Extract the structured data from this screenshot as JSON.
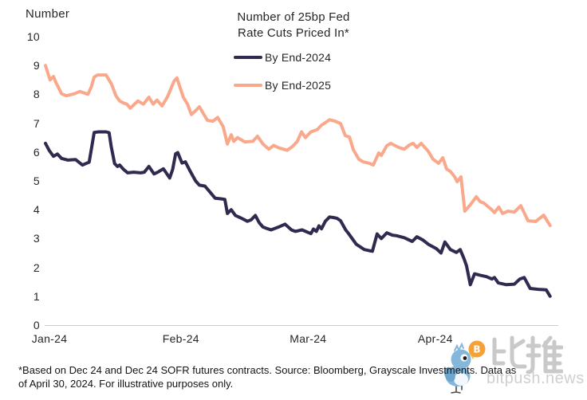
{
  "header": {
    "ylabel": "Number",
    "title_line1": "Number of 25bp Fed",
    "title_line2": "Rate Cuts Priced In*"
  },
  "legend": [
    {
      "label": "By End-2024",
      "color": "#2f2a4f"
    },
    {
      "label": "By End-2025",
      "color": "#faa88c"
    }
  ],
  "footnote": {
    "line1": "*Based on Dec 24 and Dec 24 SOFR futures contracts. Source: Bloomberg, Grayscale Investments. Data as",
    "line2": "of April 30, 2024. For illustrative purposes only."
  },
  "watermark": {
    "cn_text": "比推",
    "domain": "bitpush.news",
    "bird_color": "#85b7dc",
    "wing_color": "#6ea6cf",
    "beak_color": "#f0c24a",
    "coin_color": "#f5a135",
    "coin_symbol": "B",
    "gray": "#c9c9c9"
  },
  "chart_data": {
    "type": "line",
    "title": "Number of 25bp Fed Rate Cuts Priced In*",
    "ylabel": "Number",
    "ylim": [
      0,
      10
    ],
    "yticks": [
      0,
      1,
      2,
      3,
      4,
      5,
      6,
      7,
      8,
      9,
      10
    ],
    "x_unit": "days since 2024-01-01",
    "xlim": [
      0,
      120
    ],
    "xticks": [
      {
        "day": 0,
        "label": "Jan-24"
      },
      {
        "day": 31,
        "label": "Feb-24"
      },
      {
        "day": 61,
        "label": "Mar-24"
      },
      {
        "day": 91,
        "label": "Apr-24"
      }
    ],
    "grid": false,
    "legend_position": "top-center",
    "axis_color": "#cccccc",
    "series": [
      {
        "name": "By End-2024",
        "color": "#2f2a4f",
        "points": [
          [
            0,
            6.3
          ],
          [
            0.9,
            6.05
          ],
          [
            1.9,
            5.85
          ],
          [
            2.8,
            5.93
          ],
          [
            3.8,
            5.78
          ],
          [
            5.3,
            5.72
          ],
          [
            7.1,
            5.74
          ],
          [
            8.7,
            5.55
          ],
          [
            9.5,
            5.6
          ],
          [
            10.3,
            5.65
          ],
          [
            11.5,
            6.68
          ],
          [
            12.5,
            6.7
          ],
          [
            14.3,
            6.7
          ],
          [
            15,
            6.67
          ],
          [
            15.5,
            6.2
          ],
          [
            16.3,
            5.6
          ],
          [
            17,
            5.5
          ],
          [
            17.5,
            5.55
          ],
          [
            18.4,
            5.4
          ],
          [
            19.4,
            5.28
          ],
          [
            20.8,
            5.3
          ],
          [
            22.5,
            5.28
          ],
          [
            23.3,
            5.3
          ],
          [
            24.4,
            5.5
          ],
          [
            25.6,
            5.24
          ],
          [
            26.5,
            5.3
          ],
          [
            27.8,
            5.42
          ],
          [
            29.3,
            5.1
          ],
          [
            30,
            5.4
          ],
          [
            30.7,
            5.94
          ],
          [
            31.2,
            5.98
          ],
          [
            32.2,
            5.62
          ],
          [
            33,
            5.66
          ],
          [
            34,
            5.37
          ],
          [
            35.4,
            5.0
          ],
          [
            36.3,
            4.85
          ],
          [
            37.6,
            4.82
          ],
          [
            38.7,
            4.63
          ],
          [
            40,
            4.4
          ],
          [
            41.2,
            4.38
          ],
          [
            42.3,
            4.36
          ],
          [
            42.9,
            3.87
          ],
          [
            43.8,
            4.0
          ],
          [
            44.8,
            3.8
          ],
          [
            46.3,
            3.7
          ],
          [
            47.6,
            3.6
          ],
          [
            48.5,
            3.65
          ],
          [
            49.5,
            3.8
          ],
          [
            50.4,
            3.55
          ],
          [
            51.3,
            3.4
          ],
          [
            52.2,
            3.35
          ],
          [
            53.2,
            3.3
          ],
          [
            55,
            3.4
          ],
          [
            56.5,
            3.5
          ],
          [
            58,
            3.3
          ],
          [
            58.9,
            3.25
          ],
          [
            60.5,
            3.3
          ],
          [
            62.6,
            3.17
          ],
          [
            63.2,
            3.33
          ],
          [
            63.9,
            3.25
          ],
          [
            64.5,
            3.44
          ],
          [
            65.1,
            3.34
          ],
          [
            66,
            3.6
          ],
          [
            67,
            3.75
          ],
          [
            67.9,
            3.73
          ],
          [
            68.8,
            3.7
          ],
          [
            69.6,
            3.62
          ],
          [
            70.8,
            3.3
          ],
          [
            71.5,
            3.17
          ],
          [
            73.3,
            2.8
          ],
          [
            75.2,
            2.62
          ],
          [
            76.4,
            2.58
          ],
          [
            77.1,
            2.56
          ],
          [
            78.2,
            3.16
          ],
          [
            79.2,
            3.0
          ],
          [
            80.5,
            3.2
          ],
          [
            81.8,
            3.12
          ],
          [
            82.8,
            3.1
          ],
          [
            84.6,
            3.03
          ],
          [
            86.5,
            2.9
          ],
          [
            87.6,
            3.06
          ],
          [
            89,
            2.95
          ],
          [
            90.3,
            2.8
          ],
          [
            92.2,
            2.65
          ],
          [
            93.3,
            2.5
          ],
          [
            94.2,
            2.88
          ],
          [
            95.5,
            2.62
          ],
          [
            96.9,
            2.52
          ],
          [
            97.8,
            2.62
          ],
          [
            98.7,
            2.3
          ],
          [
            99.3,
            2.06
          ],
          [
            100.2,
            1.4
          ],
          [
            101.2,
            1.78
          ],
          [
            102.5,
            1.73
          ],
          [
            104,
            1.68
          ],
          [
            105.3,
            1.6
          ],
          [
            105.9,
            1.65
          ],
          [
            106.8,
            1.46
          ],
          [
            108.7,
            1.4
          ],
          [
            110.6,
            1.42
          ],
          [
            111.9,
            1.6
          ],
          [
            112.9,
            1.65
          ],
          [
            114.3,
            1.27
          ],
          [
            116.2,
            1.24
          ],
          [
            118.1,
            1.22
          ],
          [
            119,
            1.0
          ]
        ]
      },
      {
        "name": "By End-2025",
        "color": "#faa88c",
        "points": [
          [
            0,
            9.0
          ],
          [
            0.6,
            8.72
          ],
          [
            1.1,
            8.5
          ],
          [
            1.9,
            8.62
          ],
          [
            2.5,
            8.4
          ],
          [
            3.8,
            8.02
          ],
          [
            4.9,
            7.95
          ],
          [
            6.8,
            8.02
          ],
          [
            8.1,
            8.1
          ],
          [
            9.1,
            8.05
          ],
          [
            10,
            8.0
          ],
          [
            10.8,
            8.25
          ],
          [
            11.5,
            8.6
          ],
          [
            12.3,
            8.67
          ],
          [
            14.3,
            8.67
          ],
          [
            15.6,
            8.35
          ],
          [
            16.6,
            7.95
          ],
          [
            17.5,
            7.77
          ],
          [
            18.4,
            7.7
          ],
          [
            19.2,
            7.66
          ],
          [
            20,
            7.52
          ],
          [
            21.8,
            7.77
          ],
          [
            23.1,
            7.66
          ],
          [
            24.4,
            7.9
          ],
          [
            25.4,
            7.66
          ],
          [
            26.3,
            7.8
          ],
          [
            27.5,
            7.6
          ],
          [
            28.8,
            7.92
          ],
          [
            30.3,
            8.45
          ],
          [
            31,
            8.57
          ],
          [
            32.5,
            7.9
          ],
          [
            33.5,
            7.66
          ],
          [
            34.4,
            7.3
          ],
          [
            35.4,
            7.43
          ],
          [
            36.3,
            7.57
          ],
          [
            37.2,
            7.34
          ],
          [
            38.2,
            7.1
          ],
          [
            39.5,
            7.07
          ],
          [
            40.6,
            7.2
          ],
          [
            41.9,
            6.88
          ],
          [
            42.9,
            6.28
          ],
          [
            43.8,
            6.6
          ],
          [
            44.4,
            6.37
          ],
          [
            45.3,
            6.5
          ],
          [
            47,
            6.35
          ],
          [
            48.9,
            6.37
          ],
          [
            50,
            6.55
          ],
          [
            51.3,
            6.28
          ],
          [
            52.7,
            6.1
          ],
          [
            53.8,
            6.23
          ],
          [
            55.1,
            6.14
          ],
          [
            57,
            6.06
          ],
          [
            58.3,
            6.2
          ],
          [
            59.4,
            6.37
          ],
          [
            60.4,
            6.7
          ],
          [
            61.3,
            6.5
          ],
          [
            62.6,
            6.7
          ],
          [
            64.1,
            6.78
          ],
          [
            65.1,
            6.93
          ],
          [
            67,
            7.12
          ],
          [
            68.3,
            7.07
          ],
          [
            69.6,
            6.99
          ],
          [
            70.7,
            6.57
          ],
          [
            71.7,
            6.52
          ],
          [
            72.6,
            6.08
          ],
          [
            73.9,
            5.75
          ],
          [
            74.9,
            5.66
          ],
          [
            76.4,
            5.61
          ],
          [
            77.3,
            5.55
          ],
          [
            78.6,
            5.97
          ],
          [
            79.2,
            5.88
          ],
          [
            80.5,
            6.22
          ],
          [
            81.4,
            6.3
          ],
          [
            83.3,
            6.16
          ],
          [
            84.6,
            6.1
          ],
          [
            85.8,
            6.24
          ],
          [
            86.7,
            6.3
          ],
          [
            87.6,
            6.16
          ],
          [
            88.6,
            6.3
          ],
          [
            90.3,
            6.02
          ],
          [
            91.4,
            5.75
          ],
          [
            92.7,
            5.61
          ],
          [
            93.7,
            5.8
          ],
          [
            94.6,
            5.41
          ],
          [
            95.5,
            5.33
          ],
          [
            96.5,
            5.14
          ],
          [
            97.1,
            4.97
          ],
          [
            98,
            5.14
          ],
          [
            98.9,
            3.95
          ],
          [
            100.2,
            4.17
          ],
          [
            101.6,
            4.45
          ],
          [
            102.5,
            4.28
          ],
          [
            103.4,
            4.23
          ],
          [
            105,
            4.03
          ],
          [
            105.9,
            3.9
          ],
          [
            106.9,
            4.09
          ],
          [
            107.8,
            3.87
          ],
          [
            109.1,
            3.95
          ],
          [
            110.6,
            3.92
          ],
          [
            112.1,
            4.14
          ],
          [
            113.8,
            3.62
          ],
          [
            115.6,
            3.59
          ],
          [
            117.5,
            3.81
          ],
          [
            119,
            3.45
          ]
        ]
      }
    ]
  }
}
